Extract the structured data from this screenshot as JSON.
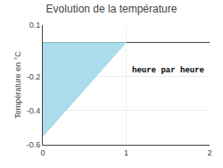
{
  "chart_data": {
    "type": "area",
    "title": "Evolution de la température",
    "ylabel": "Température en °C",
    "series": [
      {
        "type": "area",
        "x": [
          0,
          0,
          1
        ],
        "values": [
          -0.55,
          0.0,
          0.0
        ],
        "color": "#aadcec"
      },
      {
        "type": "line",
        "x": [
          0,
          1
        ],
        "values": [
          -0.55,
          0.0
        ],
        "color": "#aadcec"
      }
    ],
    "annotations": [
      {
        "text": "heure par heure",
        "x": 1.05,
        "y": -0.13
      }
    ],
    "xlim": [
      0,
      2
    ],
    "xticks": [
      0,
      1,
      2
    ],
    "ylim": [
      -0.6,
      0.1
    ],
    "yticks": [
      0.1,
      -0.2,
      -0.4,
      -0.6
    ],
    "grid": true
  }
}
